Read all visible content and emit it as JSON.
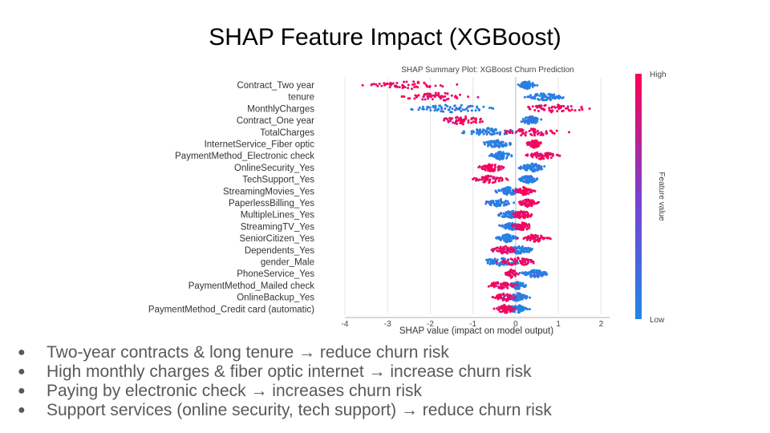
{
  "slide": {
    "title": "SHAP Feature Impact (XGBoost)",
    "bullets": [
      "Two-year contracts & long tenure → reduce churn risk",
      "High monthly charges & fiber optic internet → increase churn risk",
      "Paying by electronic check → increases churn risk",
      "Support services (online security, tech support) → reduce churn risk"
    ],
    "bullet_symbol": "●"
  },
  "chart_data": {
    "type": "scatter",
    "subtype": "shap-beeswarm",
    "title": "SHAP Summary Plot: XGBoost Churn Prediction",
    "xlabel": "SHAP value (impact on model output)",
    "xlim": [
      -4,
      2.2
    ],
    "xticks": [
      -4,
      -3,
      -2,
      -1,
      0,
      1,
      2
    ],
    "grid": "vertical",
    "colorbar": {
      "label": "Feature value",
      "high_label": "High",
      "low_label": "Low",
      "low_color": "#1e88e5",
      "high_color": "#ff0052"
    },
    "features": [
      {
        "name": "Contract_Two year",
        "min": -3.8,
        "max": 0.55,
        "low_range": [
          0.0,
          0.55
        ],
        "high_range": [
          -3.8,
          -1.1
        ]
      },
      {
        "name": "tenure",
        "min": -3.0,
        "max": 1.3,
        "low_range": [
          0.1,
          1.3
        ],
        "high_range": [
          -3.0,
          -0.6
        ]
      },
      {
        "name": "MonthlyCharges",
        "min": -2.8,
        "max": 2.0,
        "low_range": [
          -2.8,
          -0.2
        ],
        "high_range": [
          -0.2,
          2.0
        ]
      },
      {
        "name": "Contract_One year",
        "min": -2.0,
        "max": 0.7,
        "low_range": [
          0.0,
          0.7
        ],
        "high_range": [
          -2.0,
          -0.5
        ]
      },
      {
        "name": "TotalCharges",
        "min": -1.5,
        "max": 1.3,
        "low_range": [
          -1.5,
          0.2
        ],
        "high_range": [
          -0.6,
          1.3
        ]
      },
      {
        "name": "InternetService_Fiber optic",
        "min": -0.9,
        "max": 0.7,
        "low_range": [
          -0.9,
          0.0
        ],
        "high_range": [
          0.2,
          0.7
        ]
      },
      {
        "name": "PaymentMethod_Electronic check",
        "min": -0.7,
        "max": 1.1,
        "low_range": [
          -0.7,
          0.0
        ],
        "high_range": [
          0.1,
          1.1
        ]
      },
      {
        "name": "OnlineSecurity_Yes",
        "min": -1.0,
        "max": 0.8,
        "low_range": [
          0.0,
          0.8
        ],
        "high_range": [
          -1.0,
          -0.1
        ]
      },
      {
        "name": "TechSupport_Yes",
        "min": -1.1,
        "max": 0.6,
        "low_range": [
          0.0,
          0.6
        ],
        "high_range": [
          -1.1,
          -0.1
        ]
      },
      {
        "name": "StreamingMovies_Yes",
        "min": -0.6,
        "max": 0.5,
        "low_range": [
          -0.6,
          0.3
        ],
        "high_range": [
          -0.1,
          0.5
        ]
      },
      {
        "name": "PaperlessBilling_Yes",
        "min": -0.8,
        "max": 0.6,
        "low_range": [
          -0.8,
          0.0
        ],
        "high_range": [
          0.0,
          0.6
        ]
      },
      {
        "name": "MultipleLines_Yes",
        "min": -0.5,
        "max": 0.5,
        "low_range": [
          -0.5,
          0.3
        ],
        "high_range": [
          -0.2,
          0.5
        ]
      },
      {
        "name": "StreamingTV_Yes",
        "min": -0.5,
        "max": 0.5,
        "low_range": [
          -0.5,
          0.3
        ],
        "high_range": [
          -0.2,
          0.5
        ]
      },
      {
        "name": "SeniorCitizen_Yes",
        "min": -0.5,
        "max": 0.9,
        "low_range": [
          -0.5,
          0.1
        ],
        "high_range": [
          0.0,
          0.9
        ]
      },
      {
        "name": "Dependents_Yes",
        "min": -0.7,
        "max": 0.5,
        "low_range": [
          -0.3,
          0.5
        ],
        "high_range": [
          -0.7,
          0.2
        ]
      },
      {
        "name": "gender_Male",
        "min": -1.0,
        "max": 0.6,
        "low_range": [
          -1.0,
          0.3
        ],
        "high_range": [
          -0.5,
          0.6
        ]
      },
      {
        "name": "PhoneService_Yes",
        "min": -0.3,
        "max": 0.9,
        "low_range": [
          0.0,
          0.9
        ],
        "high_range": [
          -0.3,
          0.1
        ]
      },
      {
        "name": "PaymentMethod_Mailed check",
        "min": -0.8,
        "max": 0.3,
        "low_range": [
          -0.2,
          0.3
        ],
        "high_range": [
          -0.8,
          0.1
        ]
      },
      {
        "name": "OnlineBackup_Yes",
        "min": -0.6,
        "max": 0.4,
        "low_range": [
          -0.3,
          0.4
        ],
        "high_range": [
          -0.6,
          0.1
        ]
      },
      {
        "name": "PaymentMethod_Credit card (automatic)",
        "min": -0.6,
        "max": 0.4,
        "low_range": [
          -0.3,
          0.4
        ],
        "high_range": [
          -0.6,
          0.1
        ]
      }
    ]
  }
}
